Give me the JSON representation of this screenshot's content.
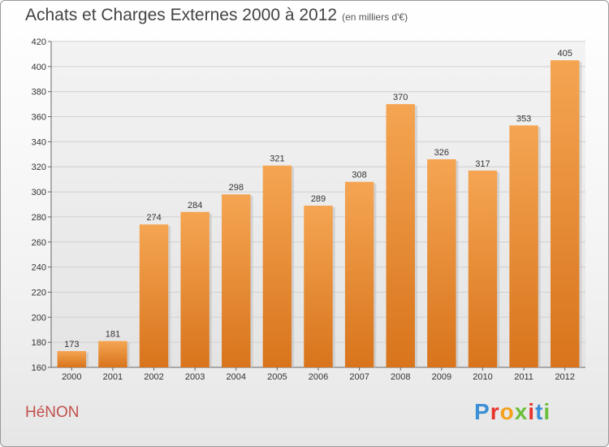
{
  "title": "Achats et Charges Externes 2000 à 2012",
  "unit": "(en milliers d'€)",
  "commune": "HéNON",
  "logo": {
    "letters": [
      "P",
      "r",
      "o",
      "x",
      "i",
      "t",
      "i"
    ],
    "colors": [
      "#3a8fd6",
      "#e8332a",
      "#f4a11d",
      "#6cbf3a",
      "#e8332a",
      "#3a8fd6",
      "#6cbf3a"
    ]
  },
  "chart_data": {
    "type": "bar",
    "title": "Achats et Charges Externes 2000 à 2012",
    "subtitle": "(en milliers d'€)",
    "categories": [
      "2000",
      "2001",
      "2002",
      "2003",
      "2004",
      "2005",
      "2006",
      "2007",
      "2008",
      "2009",
      "2010",
      "2011",
      "2012"
    ],
    "values": [
      173,
      181,
      274,
      284,
      298,
      321,
      289,
      308,
      370,
      326,
      317,
      353,
      405
    ],
    "ylim": [
      160,
      420
    ],
    "yticks": [
      160,
      180,
      200,
      220,
      240,
      260,
      280,
      300,
      320,
      340,
      360,
      380,
      400,
      420
    ],
    "grid": true,
    "bar_color": "#f0902e"
  }
}
